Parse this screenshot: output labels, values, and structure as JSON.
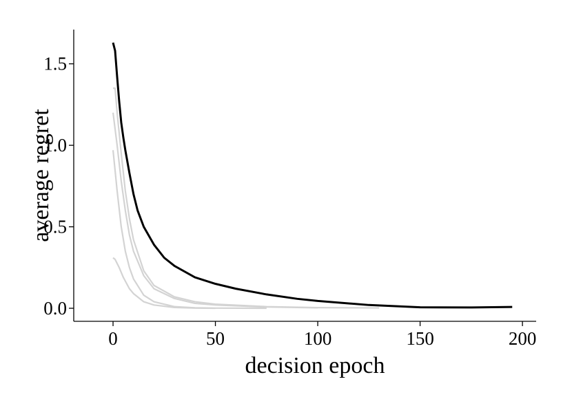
{
  "chart_data": {
    "type": "line",
    "xlabel": "decision epoch",
    "ylabel": "average regret",
    "xlim": [
      -19.2,
      206.7
    ],
    "ylim": [
      -0.08,
      1.71
    ],
    "xticks": [
      0,
      50,
      100,
      150,
      200
    ],
    "yticks": [
      {
        "value": 0,
        "label": "0.0"
      },
      0.5,
      {
        "value": 1,
        "label": "1.0"
      },
      1.5
    ],
    "series": [
      {
        "color": "#d3d3d3",
        "x": [
          0,
          1,
          2,
          4,
          6,
          8,
          10,
          15,
          20,
          30,
          40,
          50,
          75,
          100,
          130
        ],
        "values": [
          1.35,
          1.35,
          1.2,
          0.95,
          0.72,
          0.55,
          0.42,
          0.23,
          0.14,
          0.07,
          0.04,
          0.025,
          0.01,
          0.004,
          0.002
        ]
      },
      {
        "color": "#d3d3d3",
        "x": [
          0,
          2,
          4,
          6,
          8,
          10,
          15,
          20,
          30,
          40,
          50,
          75,
          100
        ],
        "values": [
          1.2,
          1.0,
          0.78,
          0.6,
          0.45,
          0.35,
          0.2,
          0.12,
          0.06,
          0.03,
          0.02,
          0.008,
          0.003
        ]
      },
      {
        "color": "#d3d3d3",
        "x": [
          0,
          2,
          4,
          6,
          8,
          10,
          15,
          20,
          30,
          40,
          50,
          75
        ],
        "values": [
          0.97,
          0.72,
          0.5,
          0.35,
          0.25,
          0.18,
          0.08,
          0.04,
          0.01,
          0.003,
          0.001,
          0
        ]
      },
      {
        "color": "#d3d3d3",
        "x": [
          0,
          1,
          3,
          5,
          8,
          10,
          15,
          20,
          30,
          40,
          50
        ],
        "values": [
          0.31,
          0.3,
          0.25,
          0.19,
          0.12,
          0.09,
          0.04,
          0.02,
          0.005,
          0.001,
          0
        ]
      },
      {
        "color": "#000000",
        "x": [
          0,
          1,
          2,
          3,
          4,
          5,
          6,
          8,
          10,
          12,
          15,
          20,
          25,
          30,
          40,
          50,
          60,
          75,
          90,
          100,
          125,
          150,
          175,
          195
        ],
        "values": [
          1.63,
          1.58,
          1.42,
          1.27,
          1.14,
          1.05,
          0.97,
          0.83,
          0.7,
          0.6,
          0.5,
          0.39,
          0.31,
          0.26,
          0.19,
          0.15,
          0.12,
          0.085,
          0.058,
          0.045,
          0.02,
          0.006,
          0.005,
          0.008
        ]
      }
    ]
  }
}
